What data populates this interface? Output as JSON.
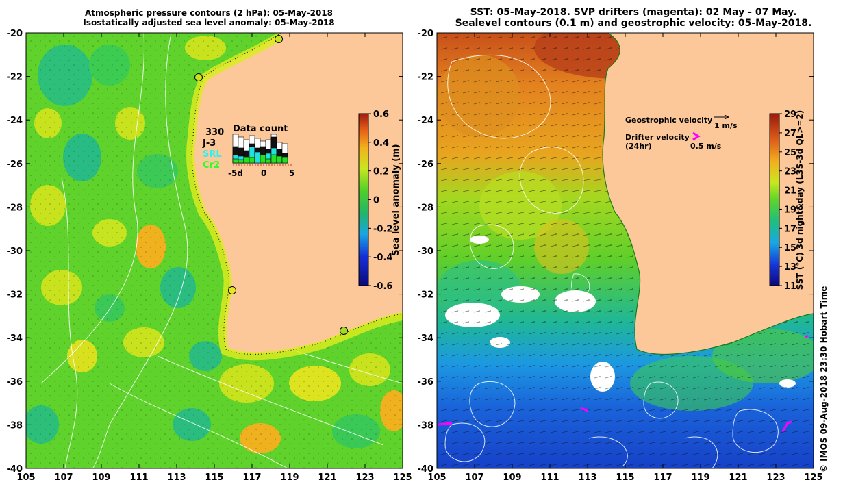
{
  "left_panel": {
    "title_line1": "Atmospheric pressure contours (2 hPa): 05-May-2018",
    "title_line2": "Isostatically adjusted sea level anomaly: 05-May-2018",
    "x_ticks": [
      "105",
      "107",
      "109",
      "111",
      "113",
      "115",
      "117",
      "119",
      "121",
      "123",
      "125"
    ],
    "y_ticks": [
      "-20",
      "-22",
      "-24",
      "-26",
      "-28",
      "-30",
      "-32",
      "-34",
      "-36",
      "-38",
      "-40"
    ],
    "colorbar": {
      "label": "Sea level anomaly (m)",
      "ticks": [
        "0.6",
        "0.4",
        "0.2",
        "0",
        "-0.2",
        "-0.4",
        "-0.6"
      ]
    },
    "data_count": {
      "title": "Data count",
      "number": "330",
      "sat_j3": "J-3",
      "sat_srl": "SRL",
      "sat_cr2": "Cr2",
      "axis_labels": [
        "-5d",
        "0",
        "5"
      ]
    }
  },
  "right_panel": {
    "title_line1": "SST: 05-May-2018. SVP drifters (magenta): 02 May - 07 May.",
    "title_line2": "Sealevel contours (0.1 m) and geostrophic velocity: 05-May-2018.",
    "x_ticks": [
      "105",
      "107",
      "109",
      "111",
      "113",
      "115",
      "117",
      "119",
      "121",
      "123",
      "125"
    ],
    "y_ticks": [
      "-20",
      "-22",
      "-24",
      "-26",
      "-28",
      "-30",
      "-32",
      "-34",
      "-36",
      "-38",
      "-40"
    ],
    "legend": {
      "geo_label": "Geostrophic velocity",
      "geo_scale": "1 m/s",
      "drifter_label_1": "Drifter velocity",
      "drifter_label_2": "(24hr)",
      "drifter_scale": "0.5 m/s"
    },
    "colorbar": {
      "label": "SST (°C) 3d night&day (L3S-3d QL>=2)",
      "ticks": [
        "29",
        "27",
        "25",
        "23",
        "21",
        "19",
        "17",
        "15",
        "13",
        "11"
      ]
    }
  },
  "credit": "© IMOS 09-Aug-2018 23:30 Hobart Time",
  "colors": {
    "land": "#fcc89a",
    "drifter": "#ff00ff",
    "sla_green": "#59d82a",
    "sla_yellow": "#d9ec1f"
  }
}
